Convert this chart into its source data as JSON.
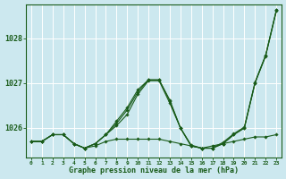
{
  "title": "Graphe pression niveau de la mer (hPa)",
  "xlim": [
    -0.5,
    23.5
  ],
  "ylim": [
    1025.35,
    1028.75
  ],
  "yticks": [
    1026,
    1027,
    1028
  ],
  "xticks": [
    0,
    1,
    2,
    3,
    4,
    5,
    6,
    7,
    8,
    9,
    10,
    11,
    12,
    13,
    14,
    15,
    16,
    17,
    18,
    19,
    20,
    21,
    22,
    23
  ],
  "bg_color": "#cce8ef",
  "grid_color": "#ffffff",
  "line_color": "#1a5c1a",
  "figsize": [
    3.2,
    2.0
  ],
  "dpi": 100,
  "series": [
    [
      1025.7,
      1025.7,
      1025.85,
      1025.85,
      1025.65,
      1025.55,
      1025.6,
      1025.7,
      1025.75,
      1025.75,
      1025.75,
      1025.75,
      1025.75,
      1025.7,
      1025.65,
      1025.6,
      1025.55,
      1025.6,
      1025.65,
      1025.7,
      1025.75,
      1025.8,
      1025.8,
      1025.85
    ],
    [
      1025.7,
      1025.7,
      1025.85,
      1025.85,
      1025.65,
      1025.55,
      1025.65,
      1025.85,
      1026.05,
      1026.3,
      1026.75,
      1027.05,
      1027.05,
      1026.55,
      1026.0,
      1025.6,
      1025.55,
      1025.55,
      1025.65,
      1025.85,
      1026.0,
      1027.0,
      1027.6,
      1028.6
    ],
    [
      1025.7,
      1025.7,
      1025.85,
      1025.85,
      1025.65,
      1025.55,
      1025.65,
      1025.85,
      1026.1,
      1026.4,
      1026.8,
      1027.07,
      1027.07,
      1026.6,
      1026.0,
      1025.6,
      1025.55,
      1025.55,
      1025.65,
      1025.85,
      1026.0,
      1027.0,
      1027.62,
      1028.62
    ],
    [
      1025.7,
      1025.7,
      1025.85,
      1025.85,
      1025.65,
      1025.55,
      1025.65,
      1025.85,
      1026.15,
      1026.45,
      1026.85,
      1027.07,
      1027.07,
      1026.62,
      1026.0,
      1025.62,
      1025.55,
      1025.55,
      1025.68,
      1025.87,
      1026.02,
      1027.02,
      1027.62,
      1028.62
    ]
  ]
}
